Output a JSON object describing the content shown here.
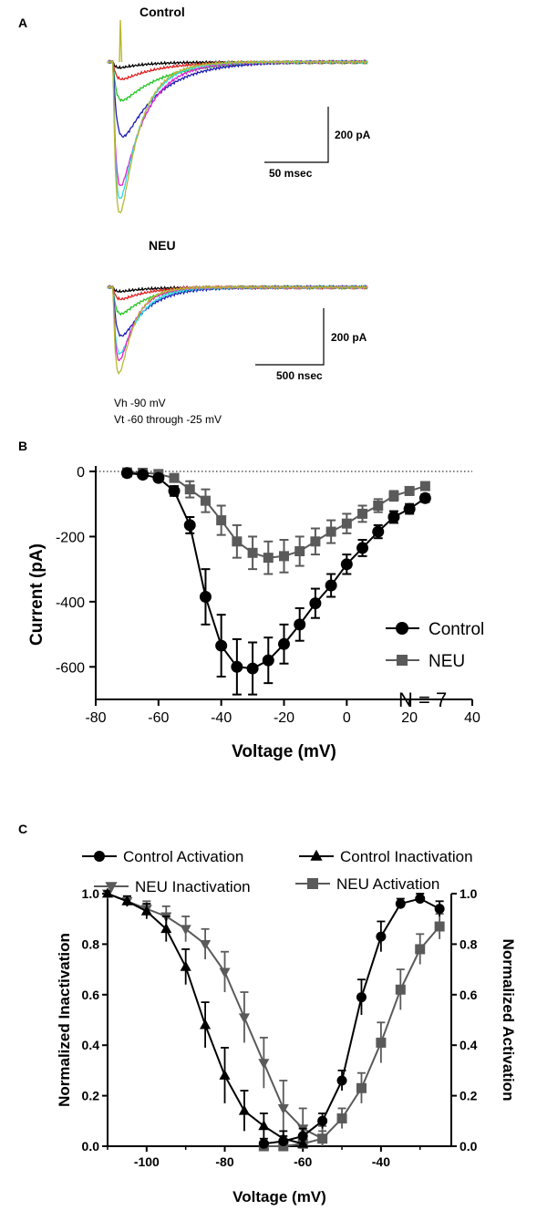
{
  "colors": {
    "control": "#000000",
    "neu": "#5a5a5a",
    "trace_black": "#000000",
    "trace_red": "#e02020",
    "trace_green": "#22c422",
    "trace_blue": "#1b1bb0",
    "trace_magenta": "#e020d0",
    "trace_cyan": "#30d8e8",
    "trace_olive": "#b8b830"
  },
  "panel_a": {
    "label": "A",
    "control": {
      "title": "Control",
      "scale_y": "200 pA",
      "scale_x": "50 msec"
    },
    "neu": {
      "title": "NEU",
      "scale_y": "200 pA",
      "scale_x": "500 nsec"
    },
    "protocol_vh": "Vh -90 mV",
    "protocol_vt": "Vt -60 through -25 mV"
  },
  "chart_data": [
    {
      "panel": "B",
      "type": "line",
      "xlabel": "Voltage (mV)",
      "ylabel": "Current (pA)",
      "xlim": [
        -80,
        40
      ],
      "ylim": [
        -700,
        0
      ],
      "xticks": [
        -80,
        -60,
        -40,
        -20,
        0,
        20,
        40
      ],
      "yticks": [
        0,
        -200,
        -400,
        -600
      ],
      "zero_line": "dotted",
      "legend_position": "bottom-right",
      "annotation": "N = 7",
      "series": [
        {
          "name": "Control",
          "marker": "circle",
          "x": [
            -70,
            -65,
            -60,
            -55,
            -50,
            -45,
            -40,
            -35,
            -30,
            -25,
            -20,
            -15,
            -10,
            -5,
            0,
            5,
            10,
            15,
            20,
            25
          ],
          "y": [
            -5,
            -10,
            -20,
            -60,
            -165,
            -385,
            -535,
            -600,
            -605,
            -580,
            -530,
            -470,
            -405,
            -350,
            -285,
            -235,
            -185,
            -140,
            -115,
            -82
          ],
          "err": [
            5,
            8,
            10,
            15,
            25,
            85,
            95,
            85,
            80,
            70,
            60,
            50,
            45,
            35,
            30,
            25,
            20,
            18,
            15,
            12
          ]
        },
        {
          "name": "NEU",
          "marker": "square",
          "x": [
            -70,
            -65,
            -60,
            -55,
            -50,
            -45,
            -40,
            -35,
            -30,
            -25,
            -20,
            -15,
            -10,
            -5,
            0,
            5,
            10,
            15,
            20,
            25
          ],
          "y": [
            -3,
            -4,
            -8,
            -20,
            -55,
            -90,
            -150,
            -215,
            -250,
            -265,
            -260,
            -245,
            -215,
            -185,
            -160,
            -130,
            -105,
            -75,
            -60,
            -45
          ],
          "err": [
            3,
            4,
            6,
            10,
            25,
            35,
            45,
            50,
            50,
            50,
            50,
            45,
            40,
            35,
            30,
            25,
            20,
            15,
            12,
            10
          ]
        }
      ]
    },
    {
      "panel": "C",
      "type": "line",
      "xlabel": "Voltage (mV)",
      "ylabel": "Normalized Inactivation",
      "ylabel_right": "Normalized Activation",
      "xlim": [
        -110,
        -22
      ],
      "ylim": [
        0,
        1.0
      ],
      "xticks": [
        -100,
        -80,
        -60,
        -40
      ],
      "yticks": [
        0.0,
        0.2,
        0.4,
        0.6,
        0.8,
        1.0
      ],
      "ytick_labels": [
        "0.0",
        "0.2",
        "0.4",
        "0.6",
        "0.8",
        "1.0"
      ],
      "legend_position": "top",
      "series": [
        {
          "name": "Control Activation",
          "marker": "circle",
          "x": [
            -70,
            -65,
            -60,
            -55,
            -50,
            -45,
            -40,
            -35,
            -30,
            -25
          ],
          "y": [
            0.01,
            0.02,
            0.04,
            0.1,
            0.26,
            0.59,
            0.83,
            0.96,
            0.98,
            0.94
          ],
          "err": [
            0.02,
            0.02,
            0.03,
            0.03,
            0.04,
            0.07,
            0.06,
            0.02,
            0.02,
            0.03
          ]
        },
        {
          "name": "Control Inactivation",
          "marker": "triangle-up",
          "x": [
            -110,
            -105,
            -100,
            -95,
            -90,
            -85,
            -80,
            -75,
            -70,
            -65,
            -60
          ],
          "y": [
            1.0,
            0.97,
            0.93,
            0.86,
            0.71,
            0.48,
            0.28,
            0.14,
            0.08,
            0.03,
            0.01
          ],
          "err": [
            0.01,
            0.02,
            0.03,
            0.05,
            0.07,
            0.09,
            0.11,
            0.08,
            0.05,
            0.03,
            0.02
          ]
        },
        {
          "name": "NEU Inactivation",
          "marker": "triangle-down",
          "x": [
            -110,
            -105,
            -100,
            -95,
            -90,
            -85,
            -80,
            -75,
            -70,
            -65,
            -60,
            -55
          ],
          "y": [
            1.0,
            0.97,
            0.94,
            0.91,
            0.86,
            0.8,
            0.69,
            0.51,
            0.33,
            0.15,
            0.07,
            0.03
          ],
          "err": [
            0.01,
            0.02,
            0.03,
            0.04,
            0.05,
            0.06,
            0.08,
            0.1,
            0.1,
            0.11,
            0.08,
            0.05
          ]
        },
        {
          "name": "NEU Activation",
          "marker": "square",
          "x": [
            -70,
            -65,
            -60,
            -55,
            -50,
            -45,
            -40,
            -35,
            -30,
            -25
          ],
          "y": [
            0.0,
            0.0,
            0.01,
            0.03,
            0.11,
            0.23,
            0.41,
            0.62,
            0.78,
            0.87
          ],
          "err": [
            0.02,
            0.02,
            0.02,
            0.03,
            0.04,
            0.06,
            0.08,
            0.08,
            0.06,
            0.05
          ]
        }
      ]
    }
  ]
}
